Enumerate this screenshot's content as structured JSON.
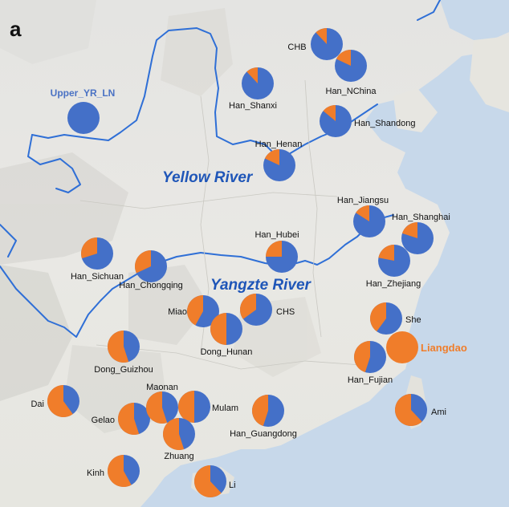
{
  "panel_label": "a",
  "colors": {
    "ancestry_a": "#4470c8",
    "ancestry_b": "#f07d2a",
    "river": "#2f6fd6",
    "sea": "#c7d8ea"
  },
  "rivers": {
    "yellow": "Yellow River",
    "yangtze": "Yangzte River"
  },
  "populations": [
    {
      "name": "Upper_YR_LN",
      "fraction_orange": 0.0,
      "label_style": "blue"
    },
    {
      "name": "CHB",
      "fraction_orange": 0.12,
      "label_style": "normal"
    },
    {
      "name": "Han_NChina",
      "fraction_orange": 0.18,
      "label_style": "normal"
    },
    {
      "name": "Han_Shanxi",
      "fraction_orange": 0.12,
      "label_style": "normal"
    },
    {
      "name": "Han_Shandong",
      "fraction_orange": 0.14,
      "label_style": "normal"
    },
    {
      "name": "Han_Henan",
      "fraction_orange": 0.18,
      "label_style": "normal"
    },
    {
      "name": "Han_Jiangsu",
      "fraction_orange": 0.16,
      "label_style": "normal"
    },
    {
      "name": "Han_Shanghai",
      "fraction_orange": 0.2,
      "label_style": "normal"
    },
    {
      "name": "Han_Zhejiang",
      "fraction_orange": 0.22,
      "label_style": "normal"
    },
    {
      "name": "Han_Hubei",
      "fraction_orange": 0.25,
      "label_style": "normal"
    },
    {
      "name": "Han_Sichuan",
      "fraction_orange": 0.3,
      "label_style": "normal"
    },
    {
      "name": "Han_Chongqing",
      "fraction_orange": 0.32,
      "label_style": "normal"
    },
    {
      "name": "Miao",
      "fraction_orange": 0.42,
      "label_style": "normal"
    },
    {
      "name": "CHS",
      "fraction_orange": 0.35,
      "label_style": "normal"
    },
    {
      "name": "Dong_Hunan",
      "fraction_orange": 0.5,
      "label_style": "normal"
    },
    {
      "name": "She",
      "fraction_orange": 0.4,
      "label_style": "normal"
    },
    {
      "name": "Liangdao",
      "fraction_orange": 1.0,
      "label_style": "orange"
    },
    {
      "name": "Han_Fujian",
      "fraction_orange": 0.45,
      "label_style": "normal"
    },
    {
      "name": "Dong_Guizhou",
      "fraction_orange": 0.55,
      "label_style": "normal"
    },
    {
      "name": "Dai",
      "fraction_orange": 0.6,
      "label_style": "normal"
    },
    {
      "name": "Gelao",
      "fraction_orange": 0.55,
      "label_style": "normal"
    },
    {
      "name": "Maonan",
      "fraction_orange": 0.55,
      "label_style": "normal"
    },
    {
      "name": "Mulam",
      "fraction_orange": 0.5,
      "label_style": "normal"
    },
    {
      "name": "Zhuang",
      "fraction_orange": 0.55,
      "label_style": "normal"
    },
    {
      "name": "Han_Guangdong",
      "fraction_orange": 0.45,
      "label_style": "normal"
    },
    {
      "name": "Ami",
      "fraction_orange": 0.62,
      "label_style": "normal"
    },
    {
      "name": "Kinh",
      "fraction_orange": 0.58,
      "label_style": "normal"
    },
    {
      "name": "Li",
      "fraction_orange": 0.62,
      "label_style": "normal"
    }
  ]
}
